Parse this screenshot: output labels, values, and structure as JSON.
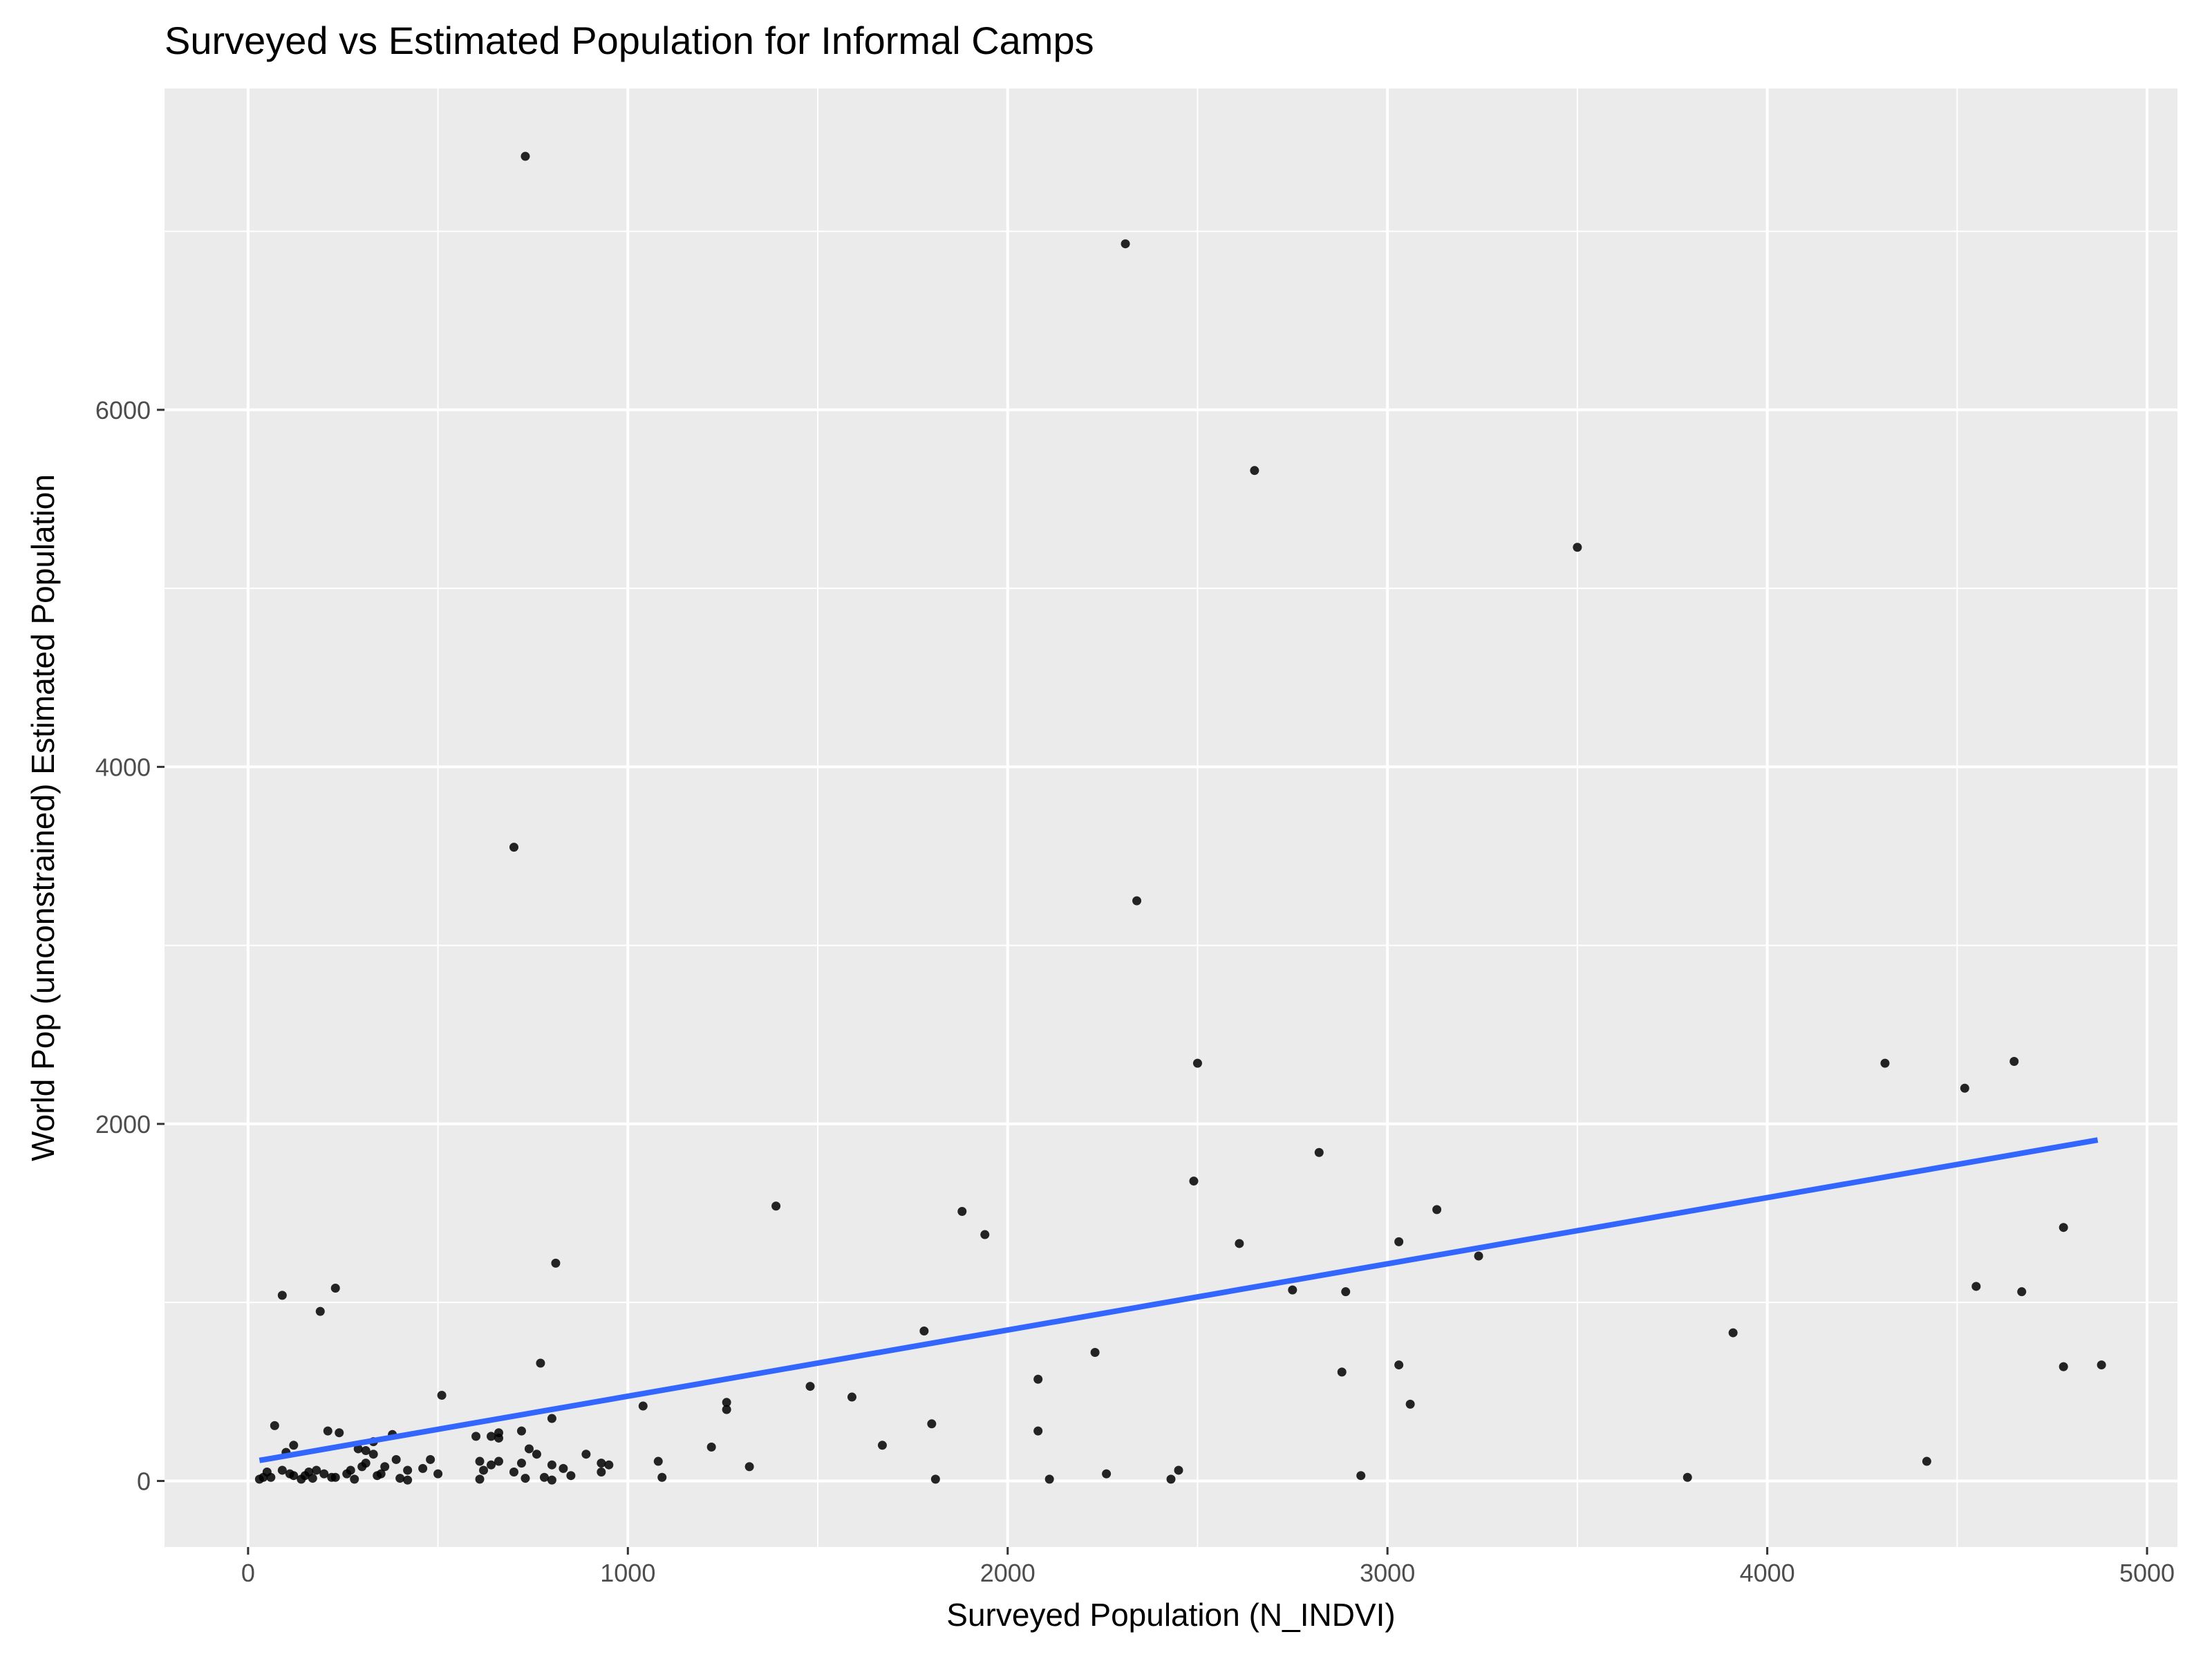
{
  "chart_data": {
    "type": "scatter",
    "title": "Surveyed vs Estimated Population for Informal Camps",
    "xlabel": "Surveyed Population (N_INDVI)",
    "ylabel": "World Pop (unconstrained) Estimated Population",
    "xlim": [
      -220,
      5080
    ],
    "ylim": [
      -370,
      7800
    ],
    "x_ticks": [
      0,
      1000,
      2000,
      3000,
      4000,
      5000
    ],
    "x_tick_labels": [
      "0",
      "1000",
      "2000",
      "3000",
      "4000",
      "5000"
    ],
    "y_ticks": [
      0,
      2000,
      4000,
      6000
    ],
    "y_tick_labels": [
      "0",
      "2000",
      "4000",
      "6000"
    ],
    "grid": true,
    "colors": {
      "panel": "#EBEBEB",
      "point": "#000000",
      "trend": "#3366FF"
    },
    "trend_line": {
      "x": [
        30,
        4870
      ],
      "y": [
        115,
        1910
      ]
    },
    "points": [
      {
        "x": 730,
        "y": 7420
      },
      {
        "x": 2310,
        "y": 6930
      },
      {
        "x": 2650,
        "y": 5660
      },
      {
        "x": 3500,
        "y": 5230
      },
      {
        "x": 700,
        "y": 3550
      },
      {
        "x": 2340,
        "y": 3250
      },
      {
        "x": 2500,
        "y": 2340
      },
      {
        "x": 4310,
        "y": 2340
      },
      {
        "x": 4650,
        "y": 2350
      },
      {
        "x": 4520,
        "y": 2200
      },
      {
        "x": 2820,
        "y": 1840
      },
      {
        "x": 2490,
        "y": 1680
      },
      {
        "x": 1390,
        "y": 1540
      },
      {
        "x": 1880,
        "y": 1510
      },
      {
        "x": 3130,
        "y": 1520
      },
      {
        "x": 4780,
        "y": 1420
      },
      {
        "x": 1940,
        "y": 1380
      },
      {
        "x": 2610,
        "y": 1330
      },
      {
        "x": 3030,
        "y": 1340
      },
      {
        "x": 3240,
        "y": 1260
      },
      {
        "x": 810,
        "y": 1220
      },
      {
        "x": 4550,
        "y": 1090
      },
      {
        "x": 4670,
        "y": 1060
      },
      {
        "x": 2750,
        "y": 1070
      },
      {
        "x": 2890,
        "y": 1060
      },
      {
        "x": 230,
        "y": 1080
      },
      {
        "x": 90,
        "y": 1040
      },
      {
        "x": 190,
        "y": 950
      },
      {
        "x": 1780,
        "y": 840
      },
      {
        "x": 3910,
        "y": 830
      },
      {
        "x": 2230,
        "y": 720
      },
      {
        "x": 770,
        "y": 660
      },
      {
        "x": 3030,
        "y": 650
      },
      {
        "x": 4880,
        "y": 650
      },
      {
        "x": 4780,
        "y": 640
      },
      {
        "x": 2880,
        "y": 610
      },
      {
        "x": 2080,
        "y": 570
      },
      {
        "x": 1480,
        "y": 530
      },
      {
        "x": 510,
        "y": 480
      },
      {
        "x": 1590,
        "y": 470
      },
      {
        "x": 3060,
        "y": 430
      },
      {
        "x": 1260,
        "y": 440
      },
      {
        "x": 1040,
        "y": 420
      },
      {
        "x": 1260,
        "y": 400
      },
      {
        "x": 800,
        "y": 350
      },
      {
        "x": 1800,
        "y": 320
      },
      {
        "x": 70,
        "y": 310
      },
      {
        "x": 720,
        "y": 280
      },
      {
        "x": 210,
        "y": 280
      },
      {
        "x": 240,
        "y": 270
      },
      {
        "x": 2080,
        "y": 280
      },
      {
        "x": 380,
        "y": 260
      },
      {
        "x": 600,
        "y": 250
      },
      {
        "x": 640,
        "y": 250
      },
      {
        "x": 660,
        "y": 270
      },
      {
        "x": 330,
        "y": 220
      },
      {
        "x": 120,
        "y": 200
      },
      {
        "x": 1670,
        "y": 200
      },
      {
        "x": 1220,
        "y": 190
      },
      {
        "x": 660,
        "y": 240
      },
      {
        "x": 740,
        "y": 180
      },
      {
        "x": 290,
        "y": 180
      },
      {
        "x": 310,
        "y": 170
      },
      {
        "x": 890,
        "y": 150
      },
      {
        "x": 760,
        "y": 150
      },
      {
        "x": 100,
        "y": 160
      },
      {
        "x": 330,
        "y": 150
      },
      {
        "x": 480,
        "y": 120
      },
      {
        "x": 390,
        "y": 120
      },
      {
        "x": 610,
        "y": 110
      },
      {
        "x": 660,
        "y": 110
      },
      {
        "x": 930,
        "y": 100
      },
      {
        "x": 1080,
        "y": 110
      },
      {
        "x": 4420,
        "y": 110
      },
      {
        "x": 950,
        "y": 90
      },
      {
        "x": 1320,
        "y": 80
      },
      {
        "x": 720,
        "y": 100
      },
      {
        "x": 800,
        "y": 90
      },
      {
        "x": 830,
        "y": 70
      },
      {
        "x": 300,
        "y": 80
      },
      {
        "x": 360,
        "y": 80
      },
      {
        "x": 460,
        "y": 70
      },
      {
        "x": 420,
        "y": 60
      },
      {
        "x": 2450,
        "y": 60
      },
      {
        "x": 160,
        "y": 50
      },
      {
        "x": 180,
        "y": 60
      },
      {
        "x": 50,
        "y": 50
      },
      {
        "x": 260,
        "y": 40
      },
      {
        "x": 500,
        "y": 40
      },
      {
        "x": 930,
        "y": 50
      },
      {
        "x": 2260,
        "y": 40
      },
      {
        "x": 2930,
        "y": 30
      },
      {
        "x": 340,
        "y": 30
      },
      {
        "x": 850,
        "y": 30
      },
      {
        "x": 120,
        "y": 30
      },
      {
        "x": 220,
        "y": 20
      },
      {
        "x": 60,
        "y": 20
      },
      {
        "x": 1090,
        "y": 20
      },
      {
        "x": 1810,
        "y": 10
      },
      {
        "x": 2110,
        "y": 10
      },
      {
        "x": 2430,
        "y": 10
      },
      {
        "x": 3790,
        "y": 20
      },
      {
        "x": 780,
        "y": 20
      },
      {
        "x": 730,
        "y": 15
      },
      {
        "x": 400,
        "y": 15
      },
      {
        "x": 170,
        "y": 15
      },
      {
        "x": 30,
        "y": 10
      },
      {
        "x": 140,
        "y": 10
      },
      {
        "x": 610,
        "y": 10
      },
      {
        "x": 800,
        "y": 5
      },
      {
        "x": 420,
        "y": 5
      },
      {
        "x": 280,
        "y": 10
      },
      {
        "x": 110,
        "y": 40
      },
      {
        "x": 200,
        "y": 40
      },
      {
        "x": 350,
        "y": 40
      },
      {
        "x": 640,
        "y": 90
      },
      {
        "x": 230,
        "y": 20
      },
      {
        "x": 90,
        "y": 60
      },
      {
        "x": 150,
        "y": 30
      },
      {
        "x": 310,
        "y": 100
      },
      {
        "x": 40,
        "y": 20
      },
      {
        "x": 270,
        "y": 60
      },
      {
        "x": 620,
        "y": 60
      },
      {
        "x": 700,
        "y": 50
      }
    ]
  }
}
